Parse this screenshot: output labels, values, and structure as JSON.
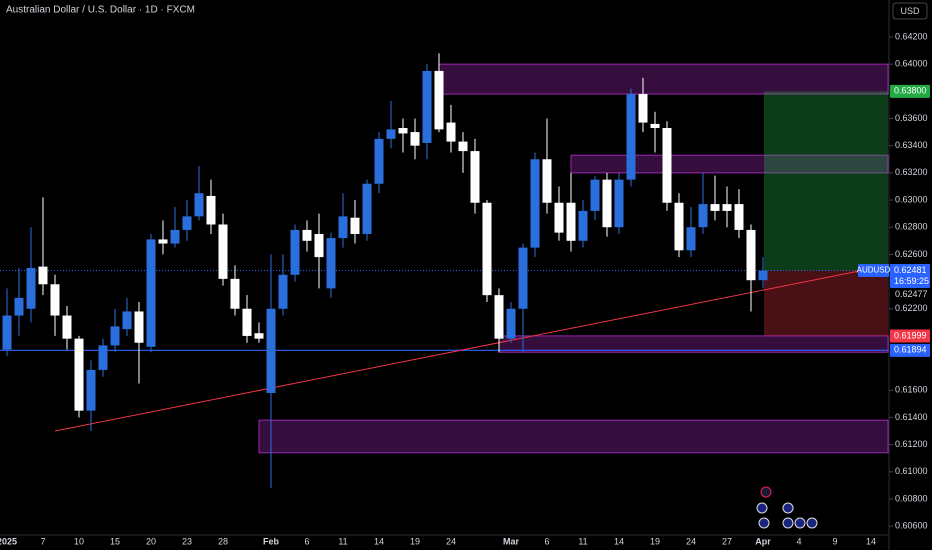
{
  "chart_data": {
    "type": "candlestick",
    "title": "Australian Dollar / U.S. Dollar · 1D · FXCM",
    "currency": "USD",
    "categories": [
      "2025",
      null,
      null,
      "7",
      null,
      null,
      "10",
      null,
      null,
      "15",
      null,
      null,
      "20",
      null,
      null,
      "23",
      null,
      null,
      "28",
      null,
      null,
      null,
      "Feb",
      null,
      null,
      "6",
      null,
      null,
      "11",
      null,
      null,
      "14",
      null,
      null,
      "19",
      null,
      null,
      "24",
      null,
      null,
      null,
      null,
      "Mar",
      null,
      null,
      "6",
      null,
      null,
      "11",
      null,
      null,
      "14",
      null,
      null,
      "19",
      null,
      null,
      "24",
      null,
      null,
      "27",
      null,
      null,
      "Apr",
      null,
      null,
      "4",
      null,
      null,
      "9",
      null,
      null,
      "14"
    ],
    "open": [
      0.619,
      0.6215,
      0.622,
      0.6251,
      0.6238,
      0.6215,
      0.6198,
      0.6145,
      0.6175,
      0.6193,
      0.6205,
      0.6218,
      0.6192,
      0.6271,
      0.6268,
      0.6278,
      0.6288,
      0.6303,
      0.6282,
      0.6242,
      0.622,
      0.6202,
      0.6158,
      0.622,
      0.6245,
      0.6278,
      0.6275,
      0.6235,
      0.6272,
      0.6287,
      0.6275,
      0.6312,
      0.6345,
      0.6353,
      0.635,
      0.6342,
      0.6395,
      0.6357,
      0.6343,
      0.6336,
      0.6298,
      0.623,
      0.6198,
      0.622,
      0.6265,
      0.633,
      0.6298,
      0.6298,
      0.627,
      0.6292,
      0.6315,
      0.628,
      0.6315,
      0.6378,
      0.6356,
      0.6353,
      0.6298,
      0.6263,
      0.628,
      0.6297,
      0.6297,
      0.6297,
      0.6278,
      0.6241,
      null,
      null,
      null,
      null,
      null,
      null,
      null,
      null,
      null
    ],
    "high": [
      0.6235,
      0.625,
      0.628,
      0.6302,
      0.6245,
      0.6222,
      0.62,
      0.6182,
      0.6198,
      0.622,
      0.6228,
      0.6225,
      0.6275,
      0.6285,
      0.6295,
      0.63,
      0.6325,
      0.6315,
      0.629,
      0.6252,
      0.623,
      0.621,
      0.626,
      0.626,
      0.6282,
      0.6285,
      0.629,
      0.6276,
      0.6305,
      0.63,
      0.6315,
      0.635,
      0.6373,
      0.636,
      0.636,
      0.64,
      0.6408,
      0.637,
      0.635,
      0.6345,
      0.63,
      0.6235,
      0.6225,
      0.6268,
      0.6335,
      0.636,
      0.631,
      0.632,
      0.63,
      0.6318,
      0.632,
      0.632,
      0.6382,
      0.639,
      0.6365,
      0.6358,
      0.6305,
      0.6295,
      0.632,
      0.6318,
      0.631,
      0.6308,
      0.6282,
      0.6258,
      null,
      null,
      null,
      null,
      null,
      null,
      null,
      null,
      null
    ],
    "low": [
      0.6185,
      0.62,
      0.621,
      0.623,
      0.62,
      0.619,
      0.614,
      0.613,
      0.617,
      0.6188,
      0.62,
      0.6165,
      0.6188,
      0.626,
      0.6265,
      0.627,
      0.6285,
      0.6275,
      0.6237,
      0.6215,
      0.6195,
      0.6195,
      0.6088,
      0.6215,
      0.624,
      0.6262,
      0.6235,
      0.6228,
      0.6265,
      0.6268,
      0.627,
      0.6305,
      0.6338,
      0.6335,
      0.633,
      0.633,
      0.635,
      0.6335,
      0.632,
      0.629,
      0.6225,
      0.6188,
      0.6195,
      0.6188,
      0.6258,
      0.629,
      0.627,
      0.6262,
      0.6265,
      0.6285,
      0.6273,
      0.6275,
      0.631,
      0.635,
      0.6335,
      0.6292,
      0.6258,
      0.6258,
      0.6275,
      0.6285,
      0.628,
      0.6272,
      0.6218,
      0.6235,
      null,
      null,
      null,
      null,
      null,
      null,
      null,
      null,
      null
    ],
    "close": [
      0.6215,
      0.6228,
      0.625,
      0.6238,
      0.6215,
      0.6198,
      0.6145,
      0.6175,
      0.6193,
      0.6207,
      0.6218,
      0.6195,
      0.6271,
      0.6268,
      0.6278,
      0.6288,
      0.6305,
      0.6282,
      0.6242,
      0.622,
      0.62,
      0.6198,
      0.622,
      0.6245,
      0.6278,
      0.627,
      0.6258,
      0.6272,
      0.6288,
      0.6275,
      0.6312,
      0.6345,
      0.6352,
      0.6349,
      0.634,
      0.6395,
      0.6352,
      0.6343,
      0.6336,
      0.6298,
      0.623,
      0.6198,
      0.622,
      0.6265,
      0.633,
      0.6298,
      0.6276,
      0.627,
      0.6292,
      0.6315,
      0.628,
      0.6315,
      0.6378,
      0.6357,
      0.6353,
      0.6298,
      0.6263,
      0.628,
      0.6297,
      0.6292,
      0.6292,
      0.6278,
      0.6241,
      0.62481,
      null,
      null,
      null,
      null,
      null,
      null,
      null,
      null,
      null
    ],
    "up_color": "#2a6fdb",
    "down_color": "#ffffff",
    "ylim": [
      0.60535,
      0.64472
    ],
    "yticks": [
      {
        "value": 0.642,
        "label": "0.64200"
      },
      {
        "value": 0.64,
        "label": "0.64000"
      },
      {
        "value": 0.636,
        "label": "0.63600"
      },
      {
        "value": 0.634,
        "label": "0.63400"
      },
      {
        "value": 0.632,
        "label": "0.63200"
      },
      {
        "value": 0.63,
        "label": "0.63000"
      },
      {
        "value": 0.628,
        "label": "0.62800"
      },
      {
        "value": 0.626,
        "label": "0.62600"
      },
      {
        "value": 0.622,
        "label": "0.62200"
      },
      {
        "value": 0.616,
        "label": "0.61600"
      },
      {
        "value": 0.614,
        "label": "0.61400"
      },
      {
        "value": 0.612,
        "label": "0.61200"
      },
      {
        "value": 0.61,
        "label": "0.61000"
      },
      {
        "value": 0.608,
        "label": "0.60800"
      },
      {
        "value": 0.606,
        "label": "0.60600"
      }
    ],
    "zones": [
      {
        "high": 0.64,
        "low": 0.6378
      },
      {
        "high": 0.6333,
        "low": 0.632
      },
      {
        "high": 0.62,
        "low": 0.6188
      },
      {
        "high": 0.6138,
        "low": 0.6114
      }
    ],
    "zone_color": "#9c27b0",
    "price_labels": [
      {
        "value": 0.638,
        "label": "0.63800",
        "color": "#22ab44"
      },
      {
        "value": 0.61999,
        "label": "0.61999",
        "color": "#f23645"
      },
      {
        "value": 0.61894,
        "label": "0.61894",
        "color": "#2962ff"
      }
    ],
    "last_price": {
      "symbol": "AUDUSD",
      "value": 0.62481,
      "label": "0.62481",
      "countdown": "16:59:25",
      "color": "#2962ff"
    },
    "bid_label": {
      "value": 0.62477,
      "label": "0.62477"
    },
    "trendline": {
      "from": 0.613,
      "to": 0.6252,
      "color": "#f23645"
    }
  }
}
